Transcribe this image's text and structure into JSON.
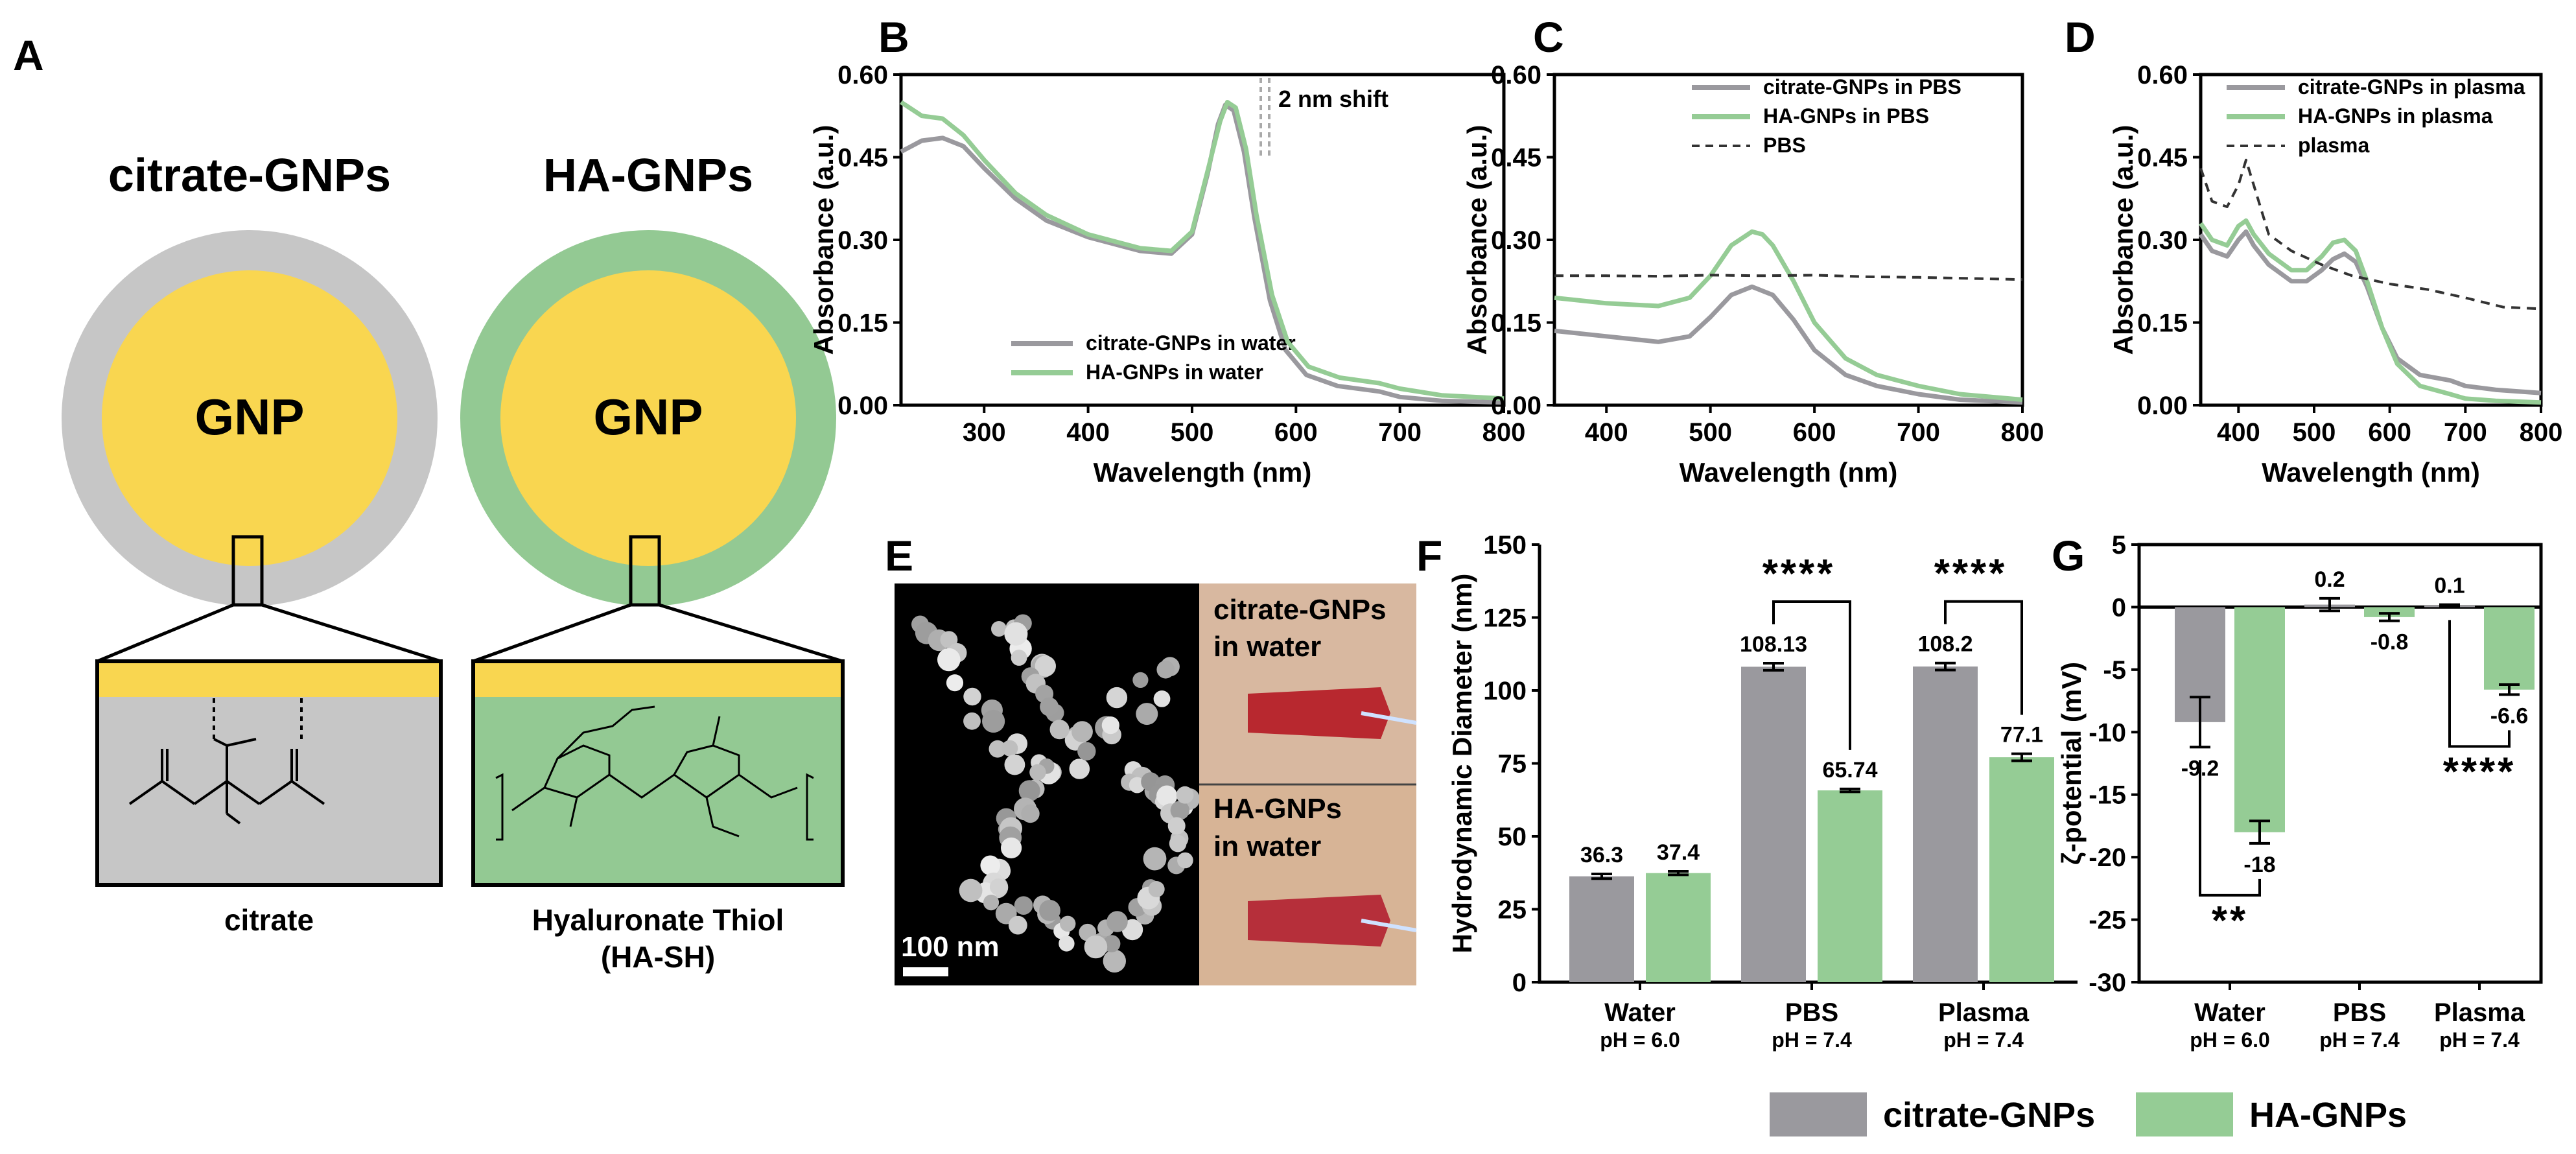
{
  "panels": {
    "A": {
      "label": "A",
      "left_title": "citrate-GNPs",
      "right_title": "HA-GNPs",
      "core_label": "GNP",
      "left_ligand": "citrate",
      "right_ligand_line1": "Hyaluronate Thiol",
      "right_ligand_line2": "(HA-SH)",
      "colors": {
        "gold": "#f9d650",
        "citrate_shell": "#c6c6c6",
        "ha_shell": "#93c993"
      }
    },
    "E": {
      "label": "E",
      "scale_bar": "100 nm",
      "top_photo_line1": "citrate-GNPs",
      "top_photo_line2": "in water",
      "bottom_photo_line1": "HA-GNPs",
      "bottom_photo_line2": "in water"
    }
  },
  "colors": {
    "citrate": "#9a999e",
    "ha": "#95cc95",
    "dashed": "#333333"
  },
  "legend_bottom": {
    "citrate": "citrate-GNPs",
    "ha": "HA-GNPs"
  },
  "chart_data": [
    {
      "id": "B",
      "label": "B",
      "type": "line",
      "xlabel": "Wavelength (nm)",
      "ylabel": "Absorbance (a.u.)",
      "xlim": [
        220,
        800
      ],
      "ylim": [
        0,
        0.6
      ],
      "xticks": [
        300,
        400,
        500,
        600,
        700,
        800
      ],
      "yticks": [
        "0.00",
        "0.15",
        "0.30",
        "0.45",
        "0.60"
      ],
      "annotation": "2 nm shift",
      "legend": [
        "citrate-GNPs in water",
        "HA-GNPs in water"
      ],
      "series": [
        {
          "name": "citrate-GNPs in water",
          "color": "citrate",
          "x": [
            220,
            240,
            260,
            280,
            300,
            330,
            360,
            400,
            450,
            480,
            500,
            515,
            525,
            532,
            540,
            550,
            560,
            575,
            590,
            610,
            640,
            680,
            700,
            740,
            800
          ],
          "y": [
            0.46,
            0.48,
            0.485,
            0.47,
            0.43,
            0.375,
            0.335,
            0.305,
            0.28,
            0.275,
            0.31,
            0.42,
            0.51,
            0.545,
            0.535,
            0.46,
            0.34,
            0.19,
            0.1,
            0.055,
            0.035,
            0.025,
            0.015,
            0.008,
            0.005
          ]
        },
        {
          "name": "HA-GNPs in water",
          "color": "ha",
          "x": [
            220,
            240,
            260,
            280,
            300,
            330,
            360,
            400,
            450,
            480,
            500,
            515,
            527,
            534,
            542,
            552,
            562,
            577,
            592,
            612,
            642,
            680,
            700,
            740,
            800
          ],
          "y": [
            0.55,
            0.525,
            0.52,
            0.49,
            0.445,
            0.385,
            0.345,
            0.31,
            0.285,
            0.28,
            0.315,
            0.425,
            0.515,
            0.55,
            0.54,
            0.465,
            0.345,
            0.2,
            0.115,
            0.07,
            0.05,
            0.04,
            0.03,
            0.018,
            0.012
          ]
        }
      ]
    },
    {
      "id": "C",
      "label": "C",
      "type": "line",
      "xlabel": "Wavelength (nm)",
      "ylabel": "Absorbance (a.u.)",
      "xlim": [
        350,
        800
      ],
      "ylim": [
        0,
        0.6
      ],
      "xticks": [
        400,
        500,
        600,
        700,
        800
      ],
      "yticks": [
        "0.00",
        "0.15",
        "0.30",
        "0.45",
        "0.60"
      ],
      "legend": [
        "citrate-GNPs in PBS",
        "HA-GNPs in PBS",
        "PBS"
      ],
      "series": [
        {
          "name": "citrate-GNPs in PBS",
          "color": "citrate",
          "x": [
            350,
            400,
            450,
            480,
            500,
            520,
            540,
            560,
            580,
            600,
            630,
            660,
            700,
            740,
            800
          ],
          "y": [
            0.135,
            0.125,
            0.115,
            0.125,
            0.16,
            0.2,
            0.215,
            0.2,
            0.155,
            0.1,
            0.055,
            0.035,
            0.02,
            0.01,
            0.005
          ]
        },
        {
          "name": "HA-GNPs in PBS",
          "color": "ha",
          "x": [
            350,
            400,
            450,
            480,
            500,
            520,
            540,
            550,
            560,
            580,
            600,
            630,
            660,
            700,
            740,
            800
          ],
          "y": [
            0.195,
            0.185,
            0.18,
            0.195,
            0.235,
            0.29,
            0.315,
            0.31,
            0.29,
            0.225,
            0.15,
            0.085,
            0.055,
            0.035,
            0.02,
            0.01
          ]
        },
        {
          "name": "PBS",
          "color": "dashed",
          "dashed": true,
          "x": [
            350,
            400,
            450,
            500,
            550,
            600,
            650,
            700,
            750,
            800
          ],
          "y": [
            0.235,
            0.235,
            0.234,
            0.236,
            0.235,
            0.236,
            0.233,
            0.232,
            0.23,
            0.228
          ]
        }
      ]
    },
    {
      "id": "D",
      "label": "D",
      "type": "line",
      "xlabel": "Wavelength (nm)",
      "ylabel": "Absorbance (a.u.)",
      "xlim": [
        350,
        800
      ],
      "ylim": [
        0,
        0.6
      ],
      "xticks": [
        400,
        500,
        600,
        700,
        800
      ],
      "yticks": [
        "0.00",
        "0.15",
        "0.30",
        "0.45",
        "0.60"
      ],
      "legend": [
        "citrate-GNPs in plasma",
        "HA-GNPs in plasma",
        "plasma"
      ],
      "series": [
        {
          "name": "citrate-GNPs in plasma",
          "color": "citrate",
          "x": [
            350,
            365,
            385,
            400,
            410,
            420,
            440,
            470,
            490,
            510,
            525,
            540,
            555,
            570,
            590,
            610,
            640,
            680,
            700,
            740,
            800
          ],
          "y": [
            0.31,
            0.28,
            0.27,
            0.3,
            0.315,
            0.29,
            0.255,
            0.225,
            0.225,
            0.245,
            0.265,
            0.275,
            0.26,
            0.215,
            0.14,
            0.085,
            0.055,
            0.045,
            0.035,
            0.028,
            0.022
          ]
        },
        {
          "name": "HA-GNPs in plasma",
          "color": "ha",
          "x": [
            350,
            365,
            385,
            400,
            410,
            420,
            440,
            470,
            490,
            510,
            525,
            540,
            555,
            570,
            590,
            610,
            640,
            680,
            700,
            740,
            800
          ],
          "y": [
            0.33,
            0.3,
            0.29,
            0.325,
            0.335,
            0.31,
            0.275,
            0.245,
            0.245,
            0.27,
            0.295,
            0.3,
            0.28,
            0.225,
            0.14,
            0.075,
            0.035,
            0.02,
            0.012,
            0.008,
            0.005
          ]
        },
        {
          "name": "plasma",
          "color": "dashed",
          "dashed": true,
          "x": [
            350,
            365,
            385,
            400,
            410,
            420,
            440,
            470,
            510,
            550,
            600,
            650,
            700,
            750,
            800
          ],
          "y": [
            0.43,
            0.37,
            0.36,
            0.4,
            0.445,
            0.4,
            0.31,
            0.28,
            0.255,
            0.235,
            0.22,
            0.21,
            0.195,
            0.178,
            0.175
          ]
        }
      ]
    },
    {
      "id": "F",
      "label": "F",
      "type": "bar",
      "ylabel": "Hydrodynamic Diameter (nm)",
      "ylim": [
        0,
        150
      ],
      "yticks": [
        0,
        25,
        50,
        75,
        100,
        125,
        150
      ],
      "categories": [
        "Water",
        "PBS",
        "Plasma"
      ],
      "ph": [
        "pH = 6.0",
        "pH = 7.4",
        "pH = 7.4"
      ],
      "series": [
        {
          "name": "citrate-GNPs",
          "color": "citrate",
          "values": [
            36.3,
            108.13,
            108.2
          ],
          "errors": [
            0.8,
            1.2,
            1.2
          ],
          "labels": [
            "36.3",
            "108.13",
            "108.2"
          ]
        },
        {
          "name": "HA-GNPs",
          "color": "ha",
          "values": [
            37.4,
            65.74,
            77.1
          ],
          "errors": [
            0.6,
            0.5,
            1.2
          ],
          "labels": [
            "37.4",
            "65.74",
            "77.1"
          ]
        }
      ],
      "significance": [
        {
          "category": 1,
          "text": "****"
        },
        {
          "category": 2,
          "text": "****"
        }
      ]
    },
    {
      "id": "G",
      "label": "G",
      "type": "bar",
      "ylabel": "ζ-potential (mV)",
      "ylim": [
        -30,
        5
      ],
      "yticks": [
        5,
        0,
        -5,
        -10,
        -15,
        -20,
        -25,
        -30
      ],
      "categories": [
        "Water",
        "PBS",
        "Plasma"
      ],
      "ph": [
        "pH = 6.0",
        "pH = 7.4",
        "pH = 7.4"
      ],
      "series": [
        {
          "name": "citrate-GNPs",
          "color": "citrate",
          "values": [
            -9.2,
            0.2,
            0.1
          ],
          "errors": [
            2.0,
            0.5,
            0.1
          ],
          "labels": [
            "-9.2",
            "0.2",
            "0.1"
          ]
        },
        {
          "name": "HA-GNPs",
          "color": "ha",
          "values": [
            -18,
            -0.8,
            -6.6
          ],
          "errors": [
            0.9,
            0.3,
            0.4
          ],
          "labels": [
            "-18",
            "-0.8",
            "-6.6"
          ]
        }
      ],
      "significance": [
        {
          "category": 0,
          "text": "**"
        },
        {
          "category": 2,
          "text": "****"
        }
      ]
    }
  ]
}
